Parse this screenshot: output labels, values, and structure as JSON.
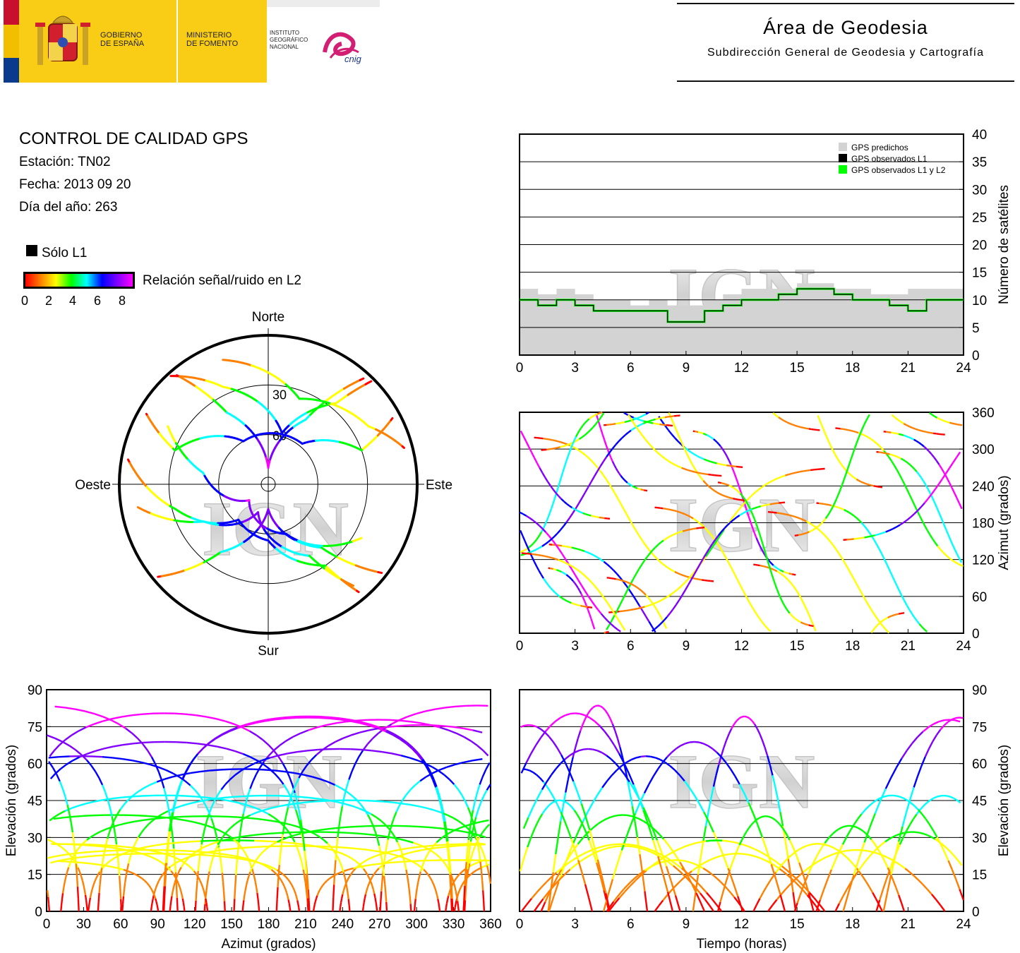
{
  "header": {
    "gobierno": [
      "GOBIERNO",
      "DE ESPAÑA"
    ],
    "ministerio": [
      "MINISTERIO",
      "DE FOMENTO"
    ],
    "instituto": [
      "INSTITUTO",
      "GEOGRÁFICO",
      "NACIONAL"
    ],
    "cnig_logo_text": "cnig",
    "area_title": "Área de Geodesia",
    "area_subtitle": "Subdirección General de Geodesia y Cartografía"
  },
  "report": {
    "title": "CONTROL DE CALIDAD GPS",
    "station": "Estación: TN02",
    "date": "Fecha: 2013 09 20",
    "doy": "Día del año: 263"
  },
  "legend": {
    "l1_only": "Sólo L1",
    "snr_label": "Relación señal/ruido en L2",
    "snr_ticks": [
      "0",
      "2",
      "4",
      "6",
      "8"
    ],
    "snr_colors": [
      "#ff0000",
      "#ff8000",
      "#ffff00",
      "#00ff00",
      "#00ffff",
      "#0000ff",
      "#8000ff",
      "#ff00ff"
    ]
  },
  "watermark": "IGN",
  "chart_data": [
    {
      "type": "polar",
      "title": "",
      "directions": {
        "north": "Norte",
        "south": "Sur",
        "east": "Este",
        "west": "Oeste"
      },
      "rings": [
        "30",
        "60"
      ],
      "radial_axis": "elevation (degrees), 90 at center, 0 at edge",
      "series": [
        {
          "sat": "a",
          "track": [
            [
              318,
              2
            ],
            [
              335,
              25
            ],
            [
              15,
              58
            ],
            [
              40,
              26
            ],
            [
              45,
              2
            ]
          ]
        },
        {
          "sat": "b",
          "track": [
            [
              300,
              5
            ],
            [
              290,
              30
            ],
            [
              330,
              60
            ],
            [
              40,
              58
            ],
            [
              70,
              30
            ],
            [
              62,
              5
            ]
          ]
        },
        {
          "sat": "c",
          "track": [
            [
              280,
              4
            ],
            [
              255,
              32
            ],
            [
              220,
              62
            ],
            [
              180,
              56
            ],
            [
              145,
              30
            ],
            [
              140,
              5
            ]
          ]
        },
        {
          "sat": "d",
          "track": [
            [
              320,
              4
            ],
            [
              330,
              40
            ],
            [
              0,
              80
            ],
            [
              30,
              45
            ],
            [
              42,
              4
            ]
          ]
        },
        {
          "sat": "e",
          "track": [
            [
              230,
              3
            ],
            [
              215,
              40
            ],
            [
              180,
              75
            ],
            [
              140,
              40
            ],
            [
              128,
              3
            ]
          ]
        },
        {
          "sat": "f",
          "track": [
            [
              300,
              20
            ],
            [
              280,
              50
            ],
            [
              230,
              75
            ],
            [
              160,
              58
            ],
            [
              120,
              25
            ]
          ]
        },
        {
          "sat": "g",
          "track": [
            [
              260,
              10
            ],
            [
              240,
              45
            ],
            [
              200,
              72
            ],
            [
              150,
              40
            ],
            [
              140,
              10
            ]
          ]
        },
        {
          "sat": "h",
          "track": [
            [
              340,
              10
            ],
            [
              20,
              35
            ],
            [
              60,
              20
            ],
            [
              75,
              5
            ]
          ]
        }
      ]
    },
    {
      "type": "area",
      "title": "",
      "x": [
        0,
        1,
        2,
        3,
        4,
        5,
        6,
        7,
        8,
        9,
        10,
        11,
        12,
        13,
        14,
        15,
        16,
        17,
        18,
        19,
        20,
        21,
        22,
        23,
        24
      ],
      "xticks": [
        "0",
        "3",
        "6",
        "9",
        "12",
        "15",
        "18",
        "21",
        "24"
      ],
      "yticks": [
        "0",
        "5",
        "10",
        "15",
        "20",
        "25",
        "30",
        "35",
        "40"
      ],
      "ylabel": "Número de satélites",
      "ylim": [
        0,
        40
      ],
      "series": [
        {
          "name": "GPS predichos",
          "color": "#d3d3d3",
          "values": [
            12,
            11,
            12,
            11,
            10,
            10,
            9,
            10,
            9,
            9,
            10,
            11,
            12,
            12,
            12,
            13,
            13,
            12,
            12,
            11,
            11,
            12,
            12,
            12,
            13
          ]
        },
        {
          "name": "GPS observados L1",
          "color": "#000000",
          "values": [
            10,
            9,
            10,
            9,
            8,
            8,
            8,
            8,
            6,
            6,
            8,
            9,
            10,
            10,
            11,
            12,
            12,
            11,
            10,
            10,
            9,
            8,
            10,
            10,
            10
          ]
        },
        {
          "name": "GPS observados L1 y L2",
          "color": "#00ff00",
          "values": [
            10,
            9,
            10,
            9,
            8,
            8,
            8,
            8,
            6,
            6,
            8,
            9,
            10,
            10,
            11,
            12,
            12,
            11,
            10,
            10,
            9,
            8,
            10,
            10,
            10
          ]
        }
      ]
    },
    {
      "type": "scatter",
      "title": "",
      "xlabel": "",
      "ylabel": "Azimut (grados)",
      "xticks": [
        "0",
        "3",
        "6",
        "9",
        "12",
        "15",
        "18",
        "21",
        "24"
      ],
      "yticks": [
        "0",
        "60",
        "120",
        "180",
        "240",
        "300",
        "360"
      ],
      "xlim": [
        0,
        24
      ],
      "ylim": [
        0,
        360
      ]
    },
    {
      "type": "scatter",
      "title": "",
      "xlabel": "Azimut (grados)",
      "ylabel": "Elevación (grados)",
      "xticks": [
        "0",
        "30",
        "60",
        "90",
        "120",
        "150",
        "180",
        "210",
        "240",
        "270",
        "300",
        "330",
        "360"
      ],
      "yticks": [
        "0",
        "15",
        "30",
        "45",
        "60",
        "75",
        "90"
      ],
      "xlim": [
        0,
        360
      ],
      "ylim": [
        0,
        90
      ]
    },
    {
      "type": "scatter",
      "title": "",
      "xlabel": "Tiempo (horas)",
      "ylabel": "Elevación (grados)",
      "xticks": [
        "0",
        "3",
        "6",
        "9",
        "12",
        "15",
        "18",
        "21",
        "24"
      ],
      "yticks": [
        "0",
        "15",
        "30",
        "45",
        "60",
        "75",
        "90"
      ],
      "xlim": [
        0,
        24
      ],
      "ylim": [
        0,
        90
      ]
    }
  ]
}
